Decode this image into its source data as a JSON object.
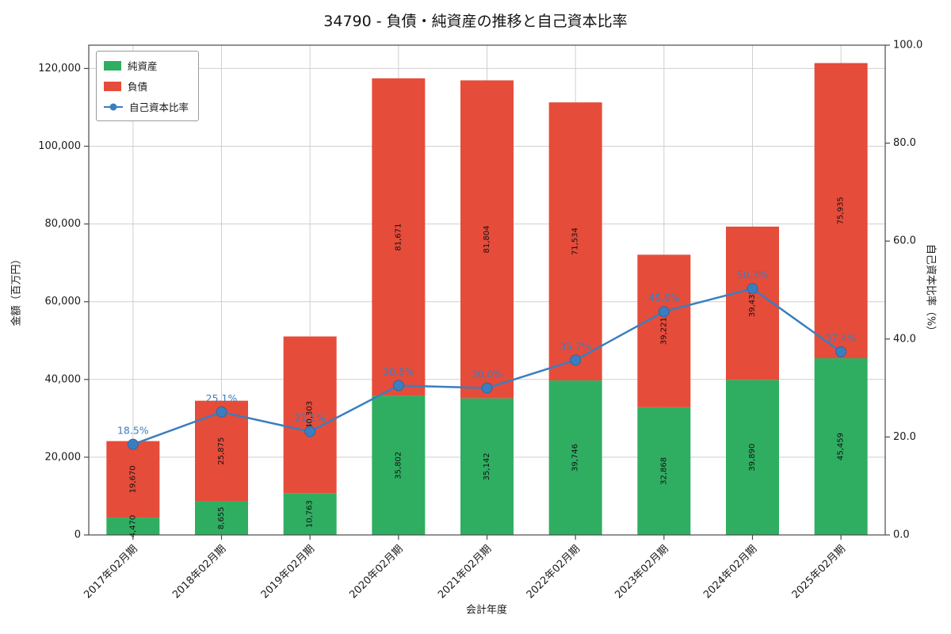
{
  "chart_data": {
    "type": "bar",
    "subtype": "stacked-bar-with-line",
    "title": "34790 - 負債・純資産の推移と自己資本比率",
    "xlabel": "会計年度",
    "ylabel": "金額（百万円）",
    "y2label": "自己資本比率（%）",
    "categories": [
      "2017年02月期",
      "2018年02月期",
      "2019年02月期",
      "2020年02月期",
      "2021年02月期",
      "2022年02月期",
      "2023年02月期",
      "2024年02月期",
      "2025年02月期"
    ],
    "series": [
      {
        "name": "純資産",
        "color": "#2fae62",
        "values": [
          4470,
          8655,
          10763,
          35802,
          35142,
          39746,
          32868,
          39890,
          45459
        ],
        "labels": [
          "4,470",
          "8,655",
          "10,763",
          "35,802",
          "35,142",
          "39,746",
          "32,868",
          "39,890",
          "45,459"
        ]
      },
      {
        "name": "負債",
        "color": "#e64c3a",
        "values": [
          19670,
          25875,
          40303,
          81671,
          81804,
          71534,
          39221,
          39437,
          75935
        ],
        "labels": [
          "19,670",
          "25,875",
          "40,303",
          "81,671",
          "81,804",
          "71,534",
          "39,221",
          "39,437",
          "75,935"
        ]
      }
    ],
    "line": {
      "name": "自己資本比率",
      "color": "#3a7ebf",
      "values": [
        18.5,
        25.1,
        21.1,
        30.5,
        30.0,
        35.7,
        45.6,
        50.3,
        37.4
      ],
      "labels": [
        "18.5%",
        "25.1%",
        "21.1%",
        "30.5%",
        "30.0%",
        "35.7%",
        "45.6%",
        "50.3%",
        "37.4%"
      ]
    },
    "ylim": [
      0,
      126000
    ],
    "y2lim": [
      0,
      100
    ],
    "y_ticks": [
      0,
      20000,
      40000,
      60000,
      80000,
      100000,
      120000
    ],
    "y_tick_labels": [
      "0",
      "20,000",
      "40,000",
      "60,000",
      "80,000",
      "100,000",
      "120,000"
    ],
    "y2_ticks": [
      0,
      20,
      40,
      60,
      80,
      100
    ],
    "y2_tick_labels": [
      "0.0",
      "20.0",
      "40.0",
      "60.0",
      "80.0",
      "100.0"
    ],
    "grid": true,
    "legend_position": "upper-left"
  }
}
